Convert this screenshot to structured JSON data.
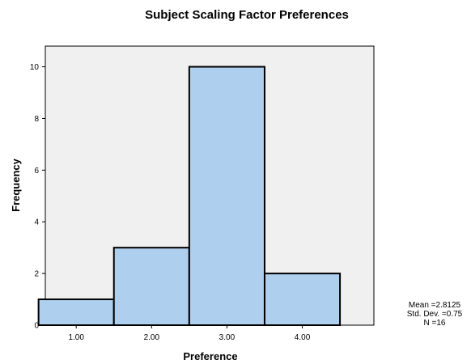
{
  "chart_data": {
    "type": "bar",
    "title": "Subject Scaling Factor Preferences",
    "xlabel": "Preference",
    "ylabel": "Frequency",
    "categories": [
      "1.00",
      "2.00",
      "3.00",
      "4.00"
    ],
    "values": [
      1,
      3,
      10,
      2
    ],
    "ylim": [
      0,
      10.8
    ],
    "yticks": [
      "0",
      "2",
      "4",
      "6",
      "8",
      "10"
    ],
    "grid": false,
    "colors": {
      "bar_fill": "#aecfee",
      "bar_stroke": "#000000",
      "plot_background": "#f0f0f0"
    },
    "stats": {
      "mean": "Mean =2.8125",
      "std_dev": "Std. Dev. =0.75",
      "n": "N =16"
    }
  }
}
